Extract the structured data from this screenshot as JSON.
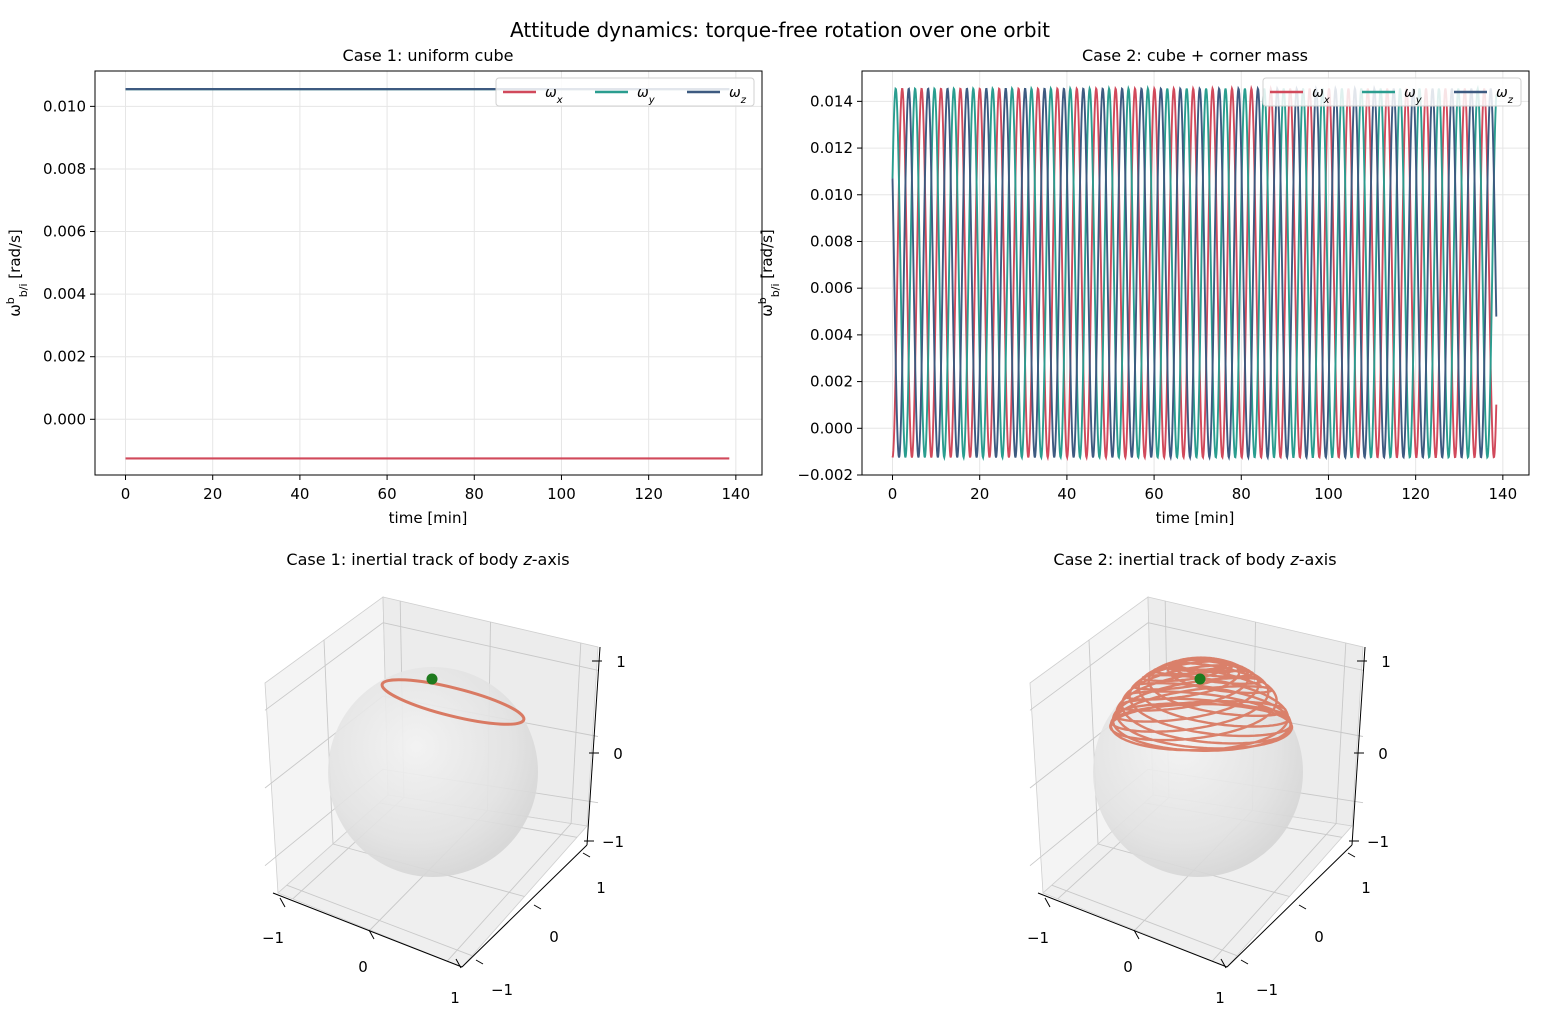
{
  "suptitle": "Attitude dynamics: torque-free rotation over one orbit",
  "colors": {
    "wx": "#d1495b",
    "wy": "#2a9d8f",
    "wz": "#3d5a80",
    "track": "#d97a63",
    "marker": "#1e7a1e"
  },
  "chart_data": [
    {
      "type": "line",
      "title": "Case 1: uniform cube",
      "xlabel": "time [min]",
      "ylabel": "ω_b/i^b [rad/s]",
      "xlim": [
        -7,
        146
      ],
      "ylim": [
        -0.00178,
        0.01113
      ],
      "xticks": [
        0,
        20,
        40,
        60,
        80,
        100,
        120,
        140
      ],
      "xtick_labels": [
        "0",
        "20",
        "40",
        "60",
        "80",
        "100",
        "120",
        "140"
      ],
      "yticks": [
        0.0,
        0.002,
        0.004,
        0.006,
        0.008,
        0.01
      ],
      "ytick_labels": [
        "0.000",
        "0.002",
        "0.004",
        "0.006",
        "0.008",
        "0.010"
      ],
      "grid": true,
      "legend": "top-right",
      "series": [
        {
          "name": "ωx",
          "x": [
            0,
            138.5
          ],
          "y": [
            -0.00125,
            -0.00125
          ]
        },
        {
          "name": "ωy",
          "x": [
            0,
            138.5
          ],
          "y": [
            0.01055,
            0.01055
          ]
        },
        {
          "name": "ωz",
          "x": [
            0,
            138.5
          ],
          "y": [
            0.01055,
            0.01055
          ]
        }
      ]
    },
    {
      "type": "line",
      "title": "Case 2: cube + corner mass",
      "xlabel": "time [min]",
      "ylabel": "ω_b/i^b [rad/s]",
      "xlim": [
        -7,
        146
      ],
      "ylim": [
        -0.002,
        0.0153
      ],
      "xticks": [
        0,
        20,
        40,
        60,
        80,
        100,
        120,
        140
      ],
      "xtick_labels": [
        "0",
        "20",
        "40",
        "60",
        "80",
        "100",
        "120",
        "140"
      ],
      "yticks": [
        -0.002,
        0.0,
        0.002,
        0.004,
        0.006,
        0.008,
        0.01,
        0.012,
        0.014
      ],
      "ytick_labels": [
        "−0.002",
        "0.000",
        "0.002",
        "0.004",
        "0.006",
        "0.008",
        "0.010",
        "0.012",
        "0.014"
      ],
      "grid": true,
      "legend": "top-right",
      "oscillation": {
        "min": -0.00125,
        "max": 0.01455,
        "period_min": 4.45,
        "t_end": 138.5
      },
      "series": [
        {
          "name": "ωx",
          "y_start": -0.00125,
          "y_end": 0.0016
        },
        {
          "name": "ωy",
          "y_start": 0.0107,
          "y_end": 0.0145
        },
        {
          "name": "ωz",
          "y_start": 0.0107,
          "y_end": 0.004
        }
      ]
    },
    {
      "type": "scatter3d",
      "title": "Case 1: inertial track of body z-axis",
      "z_tick_labels": [
        "1",
        "0",
        "−1"
      ],
      "x_tick_labels": [
        "−1",
        "0",
        "1"
      ],
      "y_tick_labels": [
        "1",
        "0",
        "−1"
      ]
    },
    {
      "type": "scatter3d",
      "title": "Case 2: inertial track of body z-axis",
      "z_tick_labels": [
        "1",
        "0",
        "−1"
      ],
      "x_tick_labels": [
        "−1",
        "0",
        "1"
      ],
      "y_tick_labels": [
        "1",
        "0",
        "−1"
      ]
    }
  ]
}
